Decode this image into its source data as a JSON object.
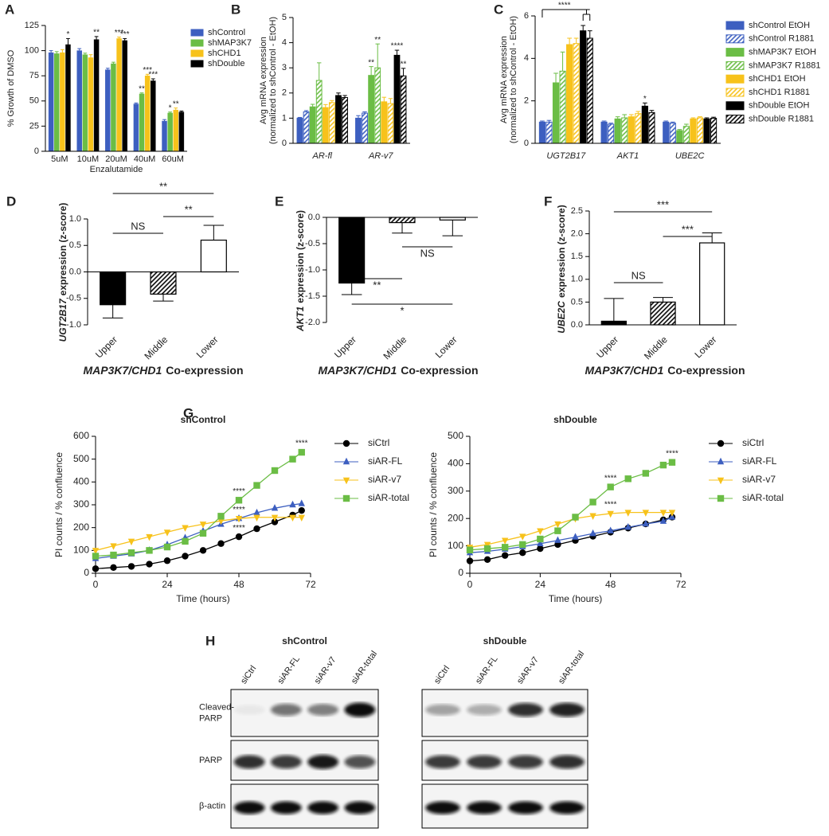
{
  "chart_data": [
    {
      "type": "bar",
      "panel_label": "A",
      "ylabel": "% Growth of DMSO",
      "xlabel": "Enzalutamide",
      "categories": [
        "5uM",
        "10uM",
        "20uM",
        "40uM",
        "60uM"
      ],
      "ylim": [
        0,
        125
      ],
      "yticks": [
        0,
        25,
        50,
        75,
        100,
        125
      ],
      "legend": "right",
      "series": [
        {
          "name": "shControl",
          "color": "#3d5fc0",
          "values": [
            98,
            100,
            81,
            47,
            30
          ],
          "errors": [
            2,
            2,
            1.5,
            1,
            1.5
          ],
          "stars": [
            null,
            null,
            null,
            null,
            null
          ]
        },
        {
          "name": "shMAP3K7",
          "color": "#6bbd45",
          "values": [
            97,
            96,
            87,
            57,
            38
          ],
          "errors": [
            2,
            1.5,
            1.5,
            1,
            1
          ],
          "stars": [
            null,
            null,
            null,
            "**",
            "*"
          ]
        },
        {
          "name": "shCHD1",
          "color": "#f7c21b",
          "values": [
            98,
            93,
            112,
            75,
            41
          ],
          "errors": [
            3,
            3,
            1.5,
            1.5,
            2
          ],
          "stars": [
            null,
            null,
            "***",
            "***",
            "**"
          ]
        },
        {
          "name": "shDouble",
          "color": "#000000",
          "values": [
            106,
            111,
            110,
            70,
            39
          ],
          "errors": [
            6,
            3,
            2,
            2,
            1
          ],
          "stars": [
            "*",
            "**",
            "***",
            "***",
            null
          ]
        }
      ]
    },
    {
      "type": "bar",
      "panel_label": "B",
      "ylabel": [
        "Avg mRNA expression",
        "(normalized to shControl - EtOH)"
      ],
      "categories": [
        "AR-fl",
        "AR-v7"
      ],
      "ylim": [
        0,
        5
      ],
      "yticks": [
        0,
        1,
        2,
        3,
        4,
        5
      ],
      "series": [
        {
          "color": "#3d5fc0",
          "hatched": false,
          "values": [
            1.0,
            1.0
          ],
          "errors": [
            0.03,
            0.1
          ],
          "stars": [
            null,
            null
          ]
        },
        {
          "color": "#3d5fc0",
          "hatched": true,
          "values": [
            1.25,
            1.2
          ],
          "errors": [
            0.05,
            0.05
          ],
          "stars": [
            null,
            null
          ]
        },
        {
          "color": "#6bbd45",
          "hatched": false,
          "values": [
            1.45,
            2.7
          ],
          "errors": [
            0.1,
            0.35
          ],
          "stars": [
            null,
            "**"
          ]
        },
        {
          "color": "#6bbd45",
          "hatched": true,
          "values": [
            2.5,
            3.0
          ],
          "errors": [
            0.7,
            0.95
          ],
          "stars": [
            null,
            "**"
          ]
        },
        {
          "color": "#f7c21b",
          "hatched": false,
          "values": [
            1.42,
            1.65
          ],
          "errors": [
            0.12,
            0.18
          ],
          "stars": [
            null,
            null
          ]
        },
        {
          "color": "#f7c21b",
          "hatched": true,
          "values": [
            1.62,
            1.58
          ],
          "errors": [
            0.08,
            0.2
          ],
          "stars": [
            null,
            null
          ]
        },
        {
          "color": "#000000",
          "hatched": false,
          "values": [
            1.9,
            3.5
          ],
          "errors": [
            0.1,
            0.2
          ],
          "stars": [
            null,
            "****"
          ]
        },
        {
          "color": "#000000",
          "hatched": true,
          "values": [
            1.82,
            2.68
          ],
          "errors": [
            0.08,
            0.3
          ],
          "stars": [
            null,
            "**"
          ]
        }
      ]
    },
    {
      "type": "bar",
      "panel_label": "C",
      "ylabel": [
        "Avg mRNA expression",
        "(normalized to shControl - EtOH)"
      ],
      "categories": [
        "UGT2B17",
        "AKT1",
        "UBE2C"
      ],
      "ylim": [
        0,
        6
      ],
      "yticks": [
        0,
        2,
        4,
        6
      ],
      "legend": "right",
      "bracket_label": "****",
      "series": [
        {
          "name": "shControl EtOH",
          "color": "#3d5fc0",
          "hatched": false,
          "values": [
            1.0,
            1.0,
            1.0
          ],
          "errors": [
            0.05,
            0.05,
            0.05
          ],
          "stars": [
            null,
            null,
            null
          ]
        },
        {
          "name": "shControl R1881",
          "color": "#3d5fc0",
          "hatched": true,
          "values": [
            1.0,
            0.9,
            0.95
          ],
          "errors": [
            0.08,
            0.05,
            0.05
          ],
          "stars": [
            null,
            null,
            null
          ]
        },
        {
          "name": "shMAP3K7 EtOH",
          "color": "#6bbd45",
          "hatched": false,
          "values": [
            2.85,
            1.15,
            0.6
          ],
          "errors": [
            0.45,
            0.1,
            0.05
          ],
          "stars": [
            null,
            null,
            null
          ]
        },
        {
          "name": "shMAP3K7 R1881",
          "color": "#6bbd45",
          "hatched": true,
          "values": [
            3.4,
            1.2,
            0.8
          ],
          "errors": [
            0.9,
            0.15,
            0.1
          ],
          "stars": [
            null,
            null,
            null
          ]
        },
        {
          "name": "shCHD1 EtOH",
          "color": "#f7c21b",
          "hatched": false,
          "values": [
            4.65,
            1.25,
            1.15
          ],
          "errors": [
            0.3,
            0.1,
            0.05
          ],
          "stars": [
            null,
            null,
            null
          ]
        },
        {
          "name": "shCHD1 R1881",
          "color": "#f7c21b",
          "hatched": true,
          "values": [
            4.7,
            1.4,
            1.2
          ],
          "errors": [
            0.25,
            0.1,
            0.05
          ],
          "stars": [
            null,
            null,
            null
          ]
        },
        {
          "name": "shDouble EtOH",
          "color": "#000000",
          "hatched": false,
          "values": [
            5.3,
            1.75,
            1.15
          ],
          "errors": [
            0.25,
            0.15,
            0.05
          ],
          "stars": [
            null,
            "*",
            null
          ]
        },
        {
          "name": "shDouble R1881",
          "color": "#000000",
          "hatched": true,
          "values": [
            4.95,
            1.45,
            1.18
          ],
          "errors": [
            0.35,
            0.1,
            0.05
          ],
          "stars": [
            null,
            null,
            null
          ]
        }
      ]
    },
    {
      "type": "bar",
      "panel_label": "D",
      "ylabel_gene": "UGT2B17",
      "ylabel": "expression (z-score)",
      "xlabel_genes": "MAP3K7/CHD1",
      "xlabel": "Co-expression",
      "categories": [
        "Upper",
        "Middle",
        "Lower"
      ],
      "values": [
        -0.62,
        -0.42,
        0.6
      ],
      "errors": [
        0.25,
        0.13,
        0.28
      ],
      "colors": [
        "#000000",
        "#ffffff",
        "#ffffff"
      ],
      "hatched": [
        false,
        true,
        false
      ],
      "edgecolor": "#000000",
      "ylim": [
        -1.0,
        1.0
      ],
      "yticks": [
        {
          "value": -1.0,
          "label": "-1.0"
        },
        {
          "value": -0.5,
          "label": "-0.5"
        },
        {
          "value": 0.0,
          "label": "0.0"
        },
        {
          "value": 0.5,
          "label": "0.5"
        },
        {
          "value": 1.0,
          "label": "1.0"
        }
      ],
      "brackets": [
        {
          "from": 0,
          "to": 1,
          "label": "NS"
        },
        {
          "from": 1,
          "to": 2,
          "label": "**"
        },
        {
          "from": 0,
          "to": 2,
          "label": "**"
        }
      ]
    },
    {
      "type": "bar",
      "panel_label": "E",
      "ylabel_gene": "AKT1",
      "ylabel": "expression (z-score)",
      "xlabel_genes": "MAP3K7/CHD1",
      "xlabel": "Co-expression",
      "categories": [
        "Upper",
        "Middle",
        "Lower"
      ],
      "values": [
        -1.25,
        -0.1,
        -0.05
      ],
      "errors": [
        0.22,
        0.2,
        0.3
      ],
      "colors": [
        "#000000",
        "#ffffff",
        "#ffffff"
      ],
      "hatched": [
        false,
        true,
        false
      ],
      "edgecolor": "#000000",
      "ylim": [
        -2.0,
        0.0
      ],
      "yticks": [
        {
          "value": -2.0,
          "label": "-2.0"
        },
        {
          "value": -1.5,
          "label": "-1.5"
        },
        {
          "value": -1.0,
          "label": "-1.0"
        },
        {
          "value": -0.5,
          "label": "-0.5"
        },
        {
          "value": 0.0,
          "label": "0.0"
        }
      ],
      "brackets": [
        {
          "from": 1,
          "to": 2,
          "label": "NS"
        },
        {
          "from": 0,
          "to": 1,
          "label": "**"
        },
        {
          "from": 0,
          "to": 2,
          "label": "*"
        }
      ]
    },
    {
      "type": "bar",
      "panel_label": "F",
      "ylabel_gene": "UBE2C",
      "ylabel": "expression (z-score)",
      "xlabel_genes": "MAP3K7/CHD1",
      "xlabel": "Co-expression",
      "categories": [
        "Upper",
        "Middle",
        "Lower"
      ],
      "values": [
        0.08,
        0.5,
        1.8
      ],
      "errors": [
        0.5,
        0.1,
        0.22
      ],
      "colors": [
        "#000000",
        "#ffffff",
        "#ffffff"
      ],
      "hatched": [
        false,
        true,
        false
      ],
      "edgecolor": "#000000",
      "ylim": [
        0.0,
        2.5
      ],
      "yticks": [
        {
          "value": 0.0,
          "label": "0.0"
        },
        {
          "value": 0.5,
          "label": "0.5"
        },
        {
          "value": 1.0,
          "label": "1.0"
        },
        {
          "value": 1.5,
          "label": "1.5"
        },
        {
          "value": 2.0,
          "label": "2.0"
        },
        {
          "value": 2.5,
          "label": "2.5"
        }
      ],
      "brackets": [
        {
          "from": 0,
          "to": 1,
          "label": "NS"
        },
        {
          "from": 1,
          "to": 2,
          "label": "***"
        },
        {
          "from": 0,
          "to": 2,
          "label": "***"
        }
      ]
    },
    {
      "type": "line",
      "panel_label": "G",
      "title": "shControl",
      "xlabel": "Time (hours)",
      "ylabel": "PI counts / % confluence",
      "x": [
        0,
        6,
        12,
        18,
        24,
        30,
        36,
        42,
        48,
        54,
        60,
        66,
        69
      ],
      "xlim": [
        0,
        72
      ],
      "xticks": [
        0,
        24,
        48,
        72
      ],
      "ylim": [
        0,
        600
      ],
      "yticks": [
        0,
        100,
        200,
        300,
        400,
        500,
        600
      ],
      "legend": "right",
      "series": [
        {
          "name": "siCtrl",
          "color": "#000000",
          "marker": "circle",
          "values": [
            20,
            25,
            30,
            40,
            55,
            75,
            100,
            130,
            160,
            195,
            225,
            255,
            275
          ],
          "stars": [
            null,
            null,
            null,
            null,
            null,
            null,
            null,
            null,
            "****",
            null,
            null,
            null,
            null
          ]
        },
        {
          "name": "siAR-FL",
          "color": "#3d5fc0",
          "marker": "triangle-up",
          "values": [
            65,
            75,
            85,
            100,
            125,
            155,
            185,
            215,
            240,
            265,
            285,
            300,
            305
          ],
          "stars": [
            null,
            null,
            null,
            null,
            null,
            null,
            null,
            null,
            "****",
            null,
            null,
            null,
            null
          ]
        },
        {
          "name": "siAR-v7",
          "color": "#f7c21b",
          "marker": "triangle-down",
          "values": [
            100,
            120,
            140,
            160,
            180,
            200,
            215,
            230,
            240,
            245,
            245,
            245,
            245
          ],
          "stars": [
            null,
            null,
            null,
            null,
            null,
            null,
            null,
            null,
            null,
            null,
            null,
            null,
            null
          ]
        },
        {
          "name": "siAR-total",
          "color": "#6bbd45",
          "marker": "square",
          "values": [
            75,
            80,
            90,
            100,
            115,
            140,
            175,
            250,
            320,
            385,
            450,
            500,
            530
          ],
          "stars": [
            null,
            null,
            null,
            null,
            null,
            null,
            null,
            null,
            "****",
            null,
            null,
            null,
            "****"
          ]
        }
      ]
    },
    {
      "type": "line",
      "title": "shDouble",
      "xlabel": "Time (hours)",
      "ylabel": "PI counts / % confluence",
      "x": [
        0,
        6,
        12,
        18,
        24,
        30,
        36,
        42,
        48,
        54,
        60,
        66,
        69
      ],
      "xlim": [
        0,
        72
      ],
      "xticks": [
        0,
        24,
        48,
        72
      ],
      "ylim": [
        0,
        500
      ],
      "yticks": [
        0,
        100,
        200,
        300,
        400,
        500
      ],
      "legend": "right",
      "series": [
        {
          "name": "siCtrl",
          "color": "#000000",
          "marker": "circle",
          "values": [
            45,
            50,
            65,
            75,
            90,
            105,
            120,
            135,
            150,
            165,
            180,
            195,
            205
          ],
          "stars": [
            null,
            null,
            null,
            null,
            null,
            null,
            null,
            null,
            null,
            null,
            null,
            null,
            null
          ]
        },
        {
          "name": "siAR-FL",
          "color": "#3d5fc0",
          "marker": "triangle-up",
          "values": [
            75,
            80,
            88,
            97,
            108,
            120,
            132,
            145,
            155,
            168,
            180,
            190,
            205
          ],
          "stars": [
            null,
            null,
            null,
            null,
            null,
            null,
            null,
            null,
            null,
            null,
            null,
            null,
            null
          ]
        },
        {
          "name": "siAR-v7",
          "color": "#f7c21b",
          "marker": "triangle-down",
          "values": [
            95,
            105,
            120,
            135,
            155,
            180,
            200,
            210,
            218,
            222,
            222,
            222,
            222
          ],
          "stars": [
            null,
            null,
            null,
            null,
            null,
            null,
            null,
            null,
            "****",
            null,
            null,
            null,
            null
          ]
        },
        {
          "name": "siAR-total",
          "color": "#6bbd45",
          "marker": "square",
          "values": [
            85,
            90,
            95,
            105,
            125,
            155,
            205,
            260,
            315,
            345,
            365,
            395,
            405
          ],
          "stars": [
            null,
            null,
            null,
            null,
            null,
            null,
            null,
            null,
            "****",
            null,
            null,
            null,
            "****"
          ]
        }
      ]
    }
  ],
  "blot": {
    "panel_label": "H",
    "groups": [
      {
        "title": "shControl",
        "lanes": [
          "siCtrl",
          "siAR-FL",
          "siAR-v7",
          "siAR-total"
        ]
      },
      {
        "title": "shDouble",
        "lanes": [
          "siCtrl",
          "siAR-FL",
          "siAR-v7",
          "siAR-total"
        ]
      }
    ],
    "rows": [
      [
        "Cleaved-",
        "PARP"
      ],
      [
        "PARP"
      ],
      [
        "β-actin"
      ]
    ]
  }
}
